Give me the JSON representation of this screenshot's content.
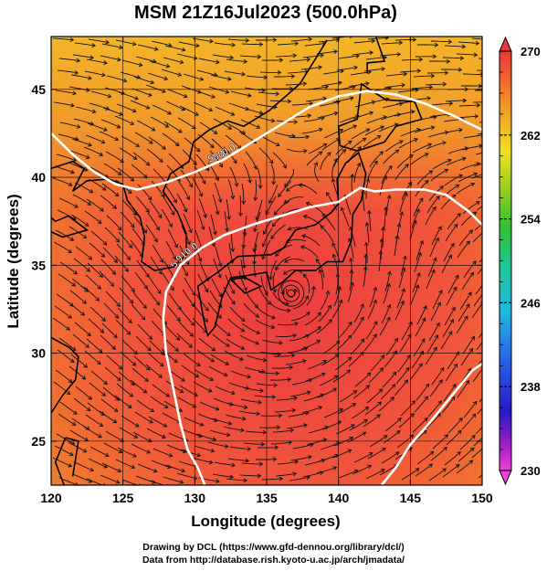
{
  "chart_data": {
    "type": "heatmap",
    "title": "MSM 21Z16Jul2023 (500.0hPa)",
    "xlabel": "Longitude (degrees)",
    "ylabel": "Latitude  (degrees)",
    "xlim": [
      120,
      150
    ],
    "ylim": [
      22.5,
      48
    ],
    "xticks": [
      "120",
      "125",
      "130",
      "135",
      "140",
      "145",
      "150"
    ],
    "yticks": [
      "25",
      "30",
      "35",
      "40",
      "45"
    ],
    "colorbar": {
      "min": 230,
      "max": 270,
      "ticks": [
        "270",
        "262",
        "254",
        "246",
        "238",
        "230"
      ]
    },
    "contours": [
      {
        "label": "5880.0",
        "points": [
          [
            120,
            42.5
          ],
          [
            121.5,
            41.3
          ],
          [
            123,
            40.3
          ],
          [
            124.5,
            39.6
          ],
          [
            126,
            39.3
          ],
          [
            128,
            39.7
          ],
          [
            130,
            40.3
          ],
          [
            132,
            41.0
          ],
          [
            134,
            42.0
          ],
          [
            136,
            43.0
          ],
          [
            138,
            44.0
          ],
          [
            140,
            44.6
          ],
          [
            142,
            44.9
          ],
          [
            144,
            44.7
          ],
          [
            146,
            44.2
          ],
          [
            148,
            43.5
          ],
          [
            150,
            42.7
          ]
        ]
      },
      {
        "label": "5910.0",
        "points": [
          [
            130.7,
            22.5
          ],
          [
            130.2,
            23.5
          ],
          [
            129.5,
            24.5
          ],
          [
            129.0,
            26.0
          ],
          [
            128.5,
            28.0
          ],
          [
            128.0,
            30.0
          ],
          [
            127.8,
            32.0
          ],
          [
            128.0,
            33.5
          ],
          [
            129.0,
            35.0
          ],
          [
            130.5,
            36.0
          ],
          [
            132.0,
            36.7
          ],
          [
            134.0,
            37.3
          ],
          [
            136.0,
            37.8
          ],
          [
            138.0,
            38.3
          ],
          [
            140.0,
            38.6
          ],
          [
            141.5,
            39.4
          ],
          [
            142.5,
            39.2
          ],
          [
            144.0,
            39.3
          ],
          [
            146.0,
            39.3
          ],
          [
            147.5,
            39.0
          ],
          [
            149.0,
            38.1
          ],
          [
            150,
            37.3
          ]
        ]
      },
      {
        "label": "",
        "points": [
          [
            143.0,
            22.5
          ],
          [
            144.0,
            23.5
          ],
          [
            145.0,
            24.8
          ],
          [
            146.3,
            26.0
          ],
          [
            147.3,
            27.0
          ],
          [
            148.3,
            28.0
          ],
          [
            149.3,
            29.0
          ],
          [
            150,
            29.4
          ]
        ]
      }
    ],
    "cyclone_center": [
      136.7,
      33.4
    ],
    "grid": true
  },
  "credits": {
    "line1": "Drawing by DCL (https://www.gfd-dennou.org/library/dcl/)",
    "line2": "Data from http://database.rish.kyoto-u.ac.jp/arch/jmadata/"
  }
}
